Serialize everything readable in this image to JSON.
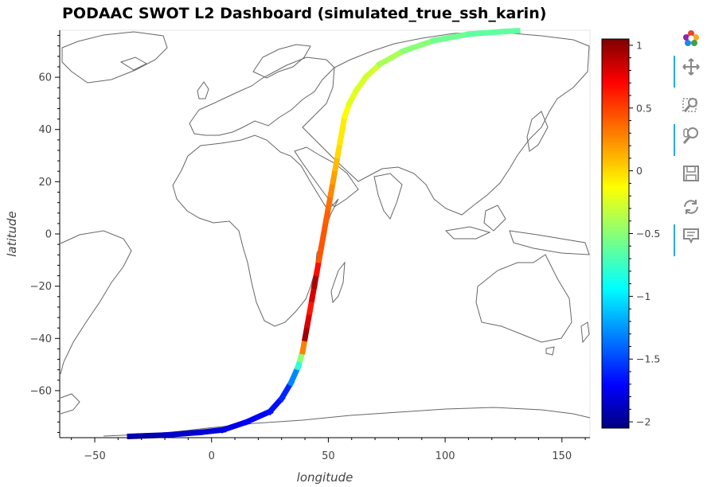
{
  "chart_data": {
    "type": "heatmap",
    "title": "PODAAC SWOT L2 Dashboard (simulated_true_ssh_karin)",
    "xlabel": "longitude",
    "ylabel": "latitude",
    "xlim": [
      -65,
      162
    ],
    "ylim": [
      -78,
      78
    ],
    "xticks": [
      -50,
      0,
      50,
      100,
      150
    ],
    "yticks": [
      -60,
      -40,
      -20,
      0,
      20,
      40,
      60
    ],
    "colorbar": {
      "colormap": "jet",
      "range": [
        -2.05,
        1.05
      ],
      "ticks": [
        1,
        0.5,
        0,
        -0.5,
        -1,
        -1.5,
        -2
      ],
      "tick_labels": [
        "1",
        "0.5",
        "0",
        "−0.5",
        "−1",
        "−1.5",
        "−2"
      ]
    },
    "basemap": "world coastlines",
    "track": [
      {
        "lon": -35,
        "lat": -77.5,
        "value": -1.9
      },
      {
        "lon": -20,
        "lat": -77,
        "value": -1.85
      },
      {
        "lon": -5,
        "lat": -76,
        "value": -1.8
      },
      {
        "lon": 5,
        "lat": -75,
        "value": -1.75
      },
      {
        "lon": 15,
        "lat": -72,
        "value": -1.7
      },
      {
        "lon": 25,
        "lat": -68,
        "value": -1.65
      },
      {
        "lon": 30,
        "lat": -63,
        "value": -1.6
      },
      {
        "lon": 34,
        "lat": -57,
        "value": -1.5
      },
      {
        "lon": 37,
        "lat": -51,
        "value": -1.0
      },
      {
        "lon": 38,
        "lat": -48,
        "value": -0.5
      },
      {
        "lon": 39,
        "lat": -45,
        "value": -0.4
      },
      {
        "lon": 40,
        "lat": -40,
        "value": 0.95
      },
      {
        "lon": 41,
        "lat": -35,
        "value": 0.95
      },
      {
        "lon": 42,
        "lat": -30,
        "value": 0.6
      },
      {
        "lon": 43,
        "lat": -25,
        "value": 0.6
      },
      {
        "lon": 44,
        "lat": -20,
        "value": 0.95
      },
      {
        "lon": 45,
        "lat": -15,
        "value": 0.85
      },
      {
        "lon": 46,
        "lat": -10,
        "value": 0.4
      },
      {
        "lon": 47,
        "lat": -5,
        "value": 0.4
      },
      {
        "lon": 48,
        "lat": 0,
        "value": 0.4
      },
      {
        "lon": 49,
        "lat": 5,
        "value": 0.4
      },
      {
        "lon": 50,
        "lat": 10,
        "value": 0.35
      },
      {
        "lon": 51,
        "lat": 15,
        "value": 0.3
      },
      {
        "lon": 52,
        "lat": 20,
        "value": 0.2
      },
      {
        "lon": 53,
        "lat": 25,
        "value": 0.15
      },
      {
        "lon": 54,
        "lat": 30,
        "value": 0.05
      },
      {
        "lon": 55,
        "lat": 35,
        "value": -0.05
      },
      {
        "lon": 56,
        "lat": 40,
        "value": -0.05
      },
      {
        "lon": 57,
        "lat": 45,
        "value": -0.05
      },
      {
        "lon": 59,
        "lat": 50,
        "value": -0.15
      },
      {
        "lon": 62,
        "lat": 55,
        "value": -0.25
      },
      {
        "lon": 66,
        "lat": 60,
        "value": -0.2
      },
      {
        "lon": 72,
        "lat": 65,
        "value": -0.3
      },
      {
        "lon": 82,
        "lat": 70,
        "value": -0.45
      },
      {
        "lon": 95,
        "lat": 74,
        "value": -0.5
      },
      {
        "lon": 110,
        "lat": 76.5,
        "value": -0.6
      },
      {
        "lon": 125,
        "lat": 77.5,
        "value": -0.6
      },
      {
        "lon": 131,
        "lat": 77.8,
        "value": -0.6
      }
    ]
  },
  "toolbar": {
    "tools": [
      {
        "name": "bokeh-logo-icon",
        "active": false
      },
      {
        "name": "pan-tool-icon",
        "active": true
      },
      {
        "name": "box-zoom-tool-icon",
        "active": false
      },
      {
        "name": "wheel-zoom-tool-icon",
        "active": true
      },
      {
        "name": "save-tool-icon",
        "active": false
      },
      {
        "name": "reset-tool-icon",
        "active": false
      },
      {
        "name": "hover-tool-icon",
        "active": true
      }
    ]
  }
}
